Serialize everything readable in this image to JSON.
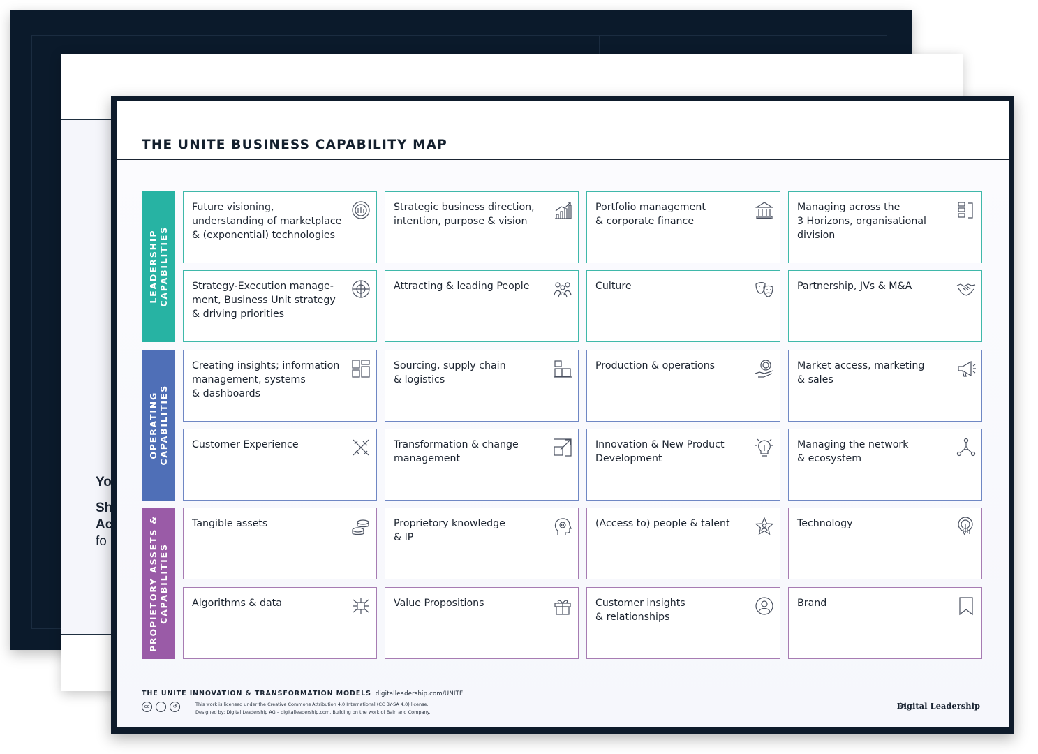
{
  "background_sheets": {
    "middle_text_1": "Yo",
    "middle_text_2": "Sh",
    "middle_text_3": "Ac",
    "middle_text_4": "fo"
  },
  "title": "THE UNITE BUSINESS CAPABILITY MAP",
  "bands": [
    {
      "label": "LEADERSHIP\nCAPABILITIES",
      "color": "#27b3a3"
    },
    {
      "label": "OPERATING\nCAPABILITIES",
      "color": "#4f6fb7"
    },
    {
      "label": "PROPIETORY ASSETS &\nCAPABILITIES",
      "color": "#9a5ba7"
    }
  ],
  "cells": [
    {
      "text": "Future visioning,\nunderstanding of marketplace\n& (exponential) technologies",
      "icon": "compass-gear-icon"
    },
    {
      "text": "Strategic business direction,\nintention, purpose & vision",
      "icon": "growth-chart-icon"
    },
    {
      "text": "Portfolio management\n& corporate finance",
      "icon": "bank-icon"
    },
    {
      "text": "Managing across the\n3 Horizons, organisational\ndivision",
      "icon": "horizons-icon"
    },
    {
      "text": "Strategy-Execution manage-\nment, Business Unit strategy\n& driving priorities",
      "icon": "target-icon"
    },
    {
      "text": "Attracting & leading People",
      "icon": "people-icon"
    },
    {
      "text": "Culture",
      "icon": "theater-masks-icon"
    },
    {
      "text": "Partnership, JVs & M&A",
      "icon": "handshake-icon"
    },
    {
      "text": "Creating insights; information\nmanagement, systems\n& dashboards",
      "icon": "dashboard-icon"
    },
    {
      "text": "Sourcing, supply chain\n& logistics",
      "icon": "boxes-icon"
    },
    {
      "text": "Production & operations",
      "icon": "gear-hand-icon"
    },
    {
      "text": "Market access, marketing\n& sales",
      "icon": "megaphone-icon"
    },
    {
      "text": "Customer Experience",
      "icon": "design-tools-icon"
    },
    {
      "text": "Transformation & change\nmanagement",
      "icon": "expand-icon"
    },
    {
      "text": "Innovation & New Product\nDevelopment",
      "icon": "lightbulb-icon"
    },
    {
      "text": "Managing the network\n& ecosystem",
      "icon": "network-icon"
    },
    {
      "text": "Tangible assets",
      "icon": "coins-icon"
    },
    {
      "text": "Proprietory knowledge\n& IP",
      "icon": "head-gear-icon"
    },
    {
      "text": "(Access to) people & talent",
      "icon": "star-person-icon"
    },
    {
      "text": "Technology",
      "icon": "touch-icon"
    },
    {
      "text": "Algorithms & data",
      "icon": "chip-icon"
    },
    {
      "text": "Value Propositions",
      "icon": "gift-icon"
    },
    {
      "text": "Customer insights\n& relationships",
      "icon": "user-circle-icon"
    },
    {
      "text": "Brand",
      "icon": "bookmark-icon"
    }
  ],
  "footer": {
    "models": "THE UNITE INNOVATION & TRANSFORMATION MODELS",
    "url": "digitalleadership.com/UNITE",
    "license": "This work is licensed under the Creative Commons Attribution 4.0 International (CC BY-SA 4.0) license.",
    "designed": "Designed by: Digital Leadership AG – digitalleadership.com. Building on the work of Bain and Company.",
    "cc_icons": [
      "cc",
      "by",
      "sa"
    ],
    "brand": "Digital Leadership"
  }
}
